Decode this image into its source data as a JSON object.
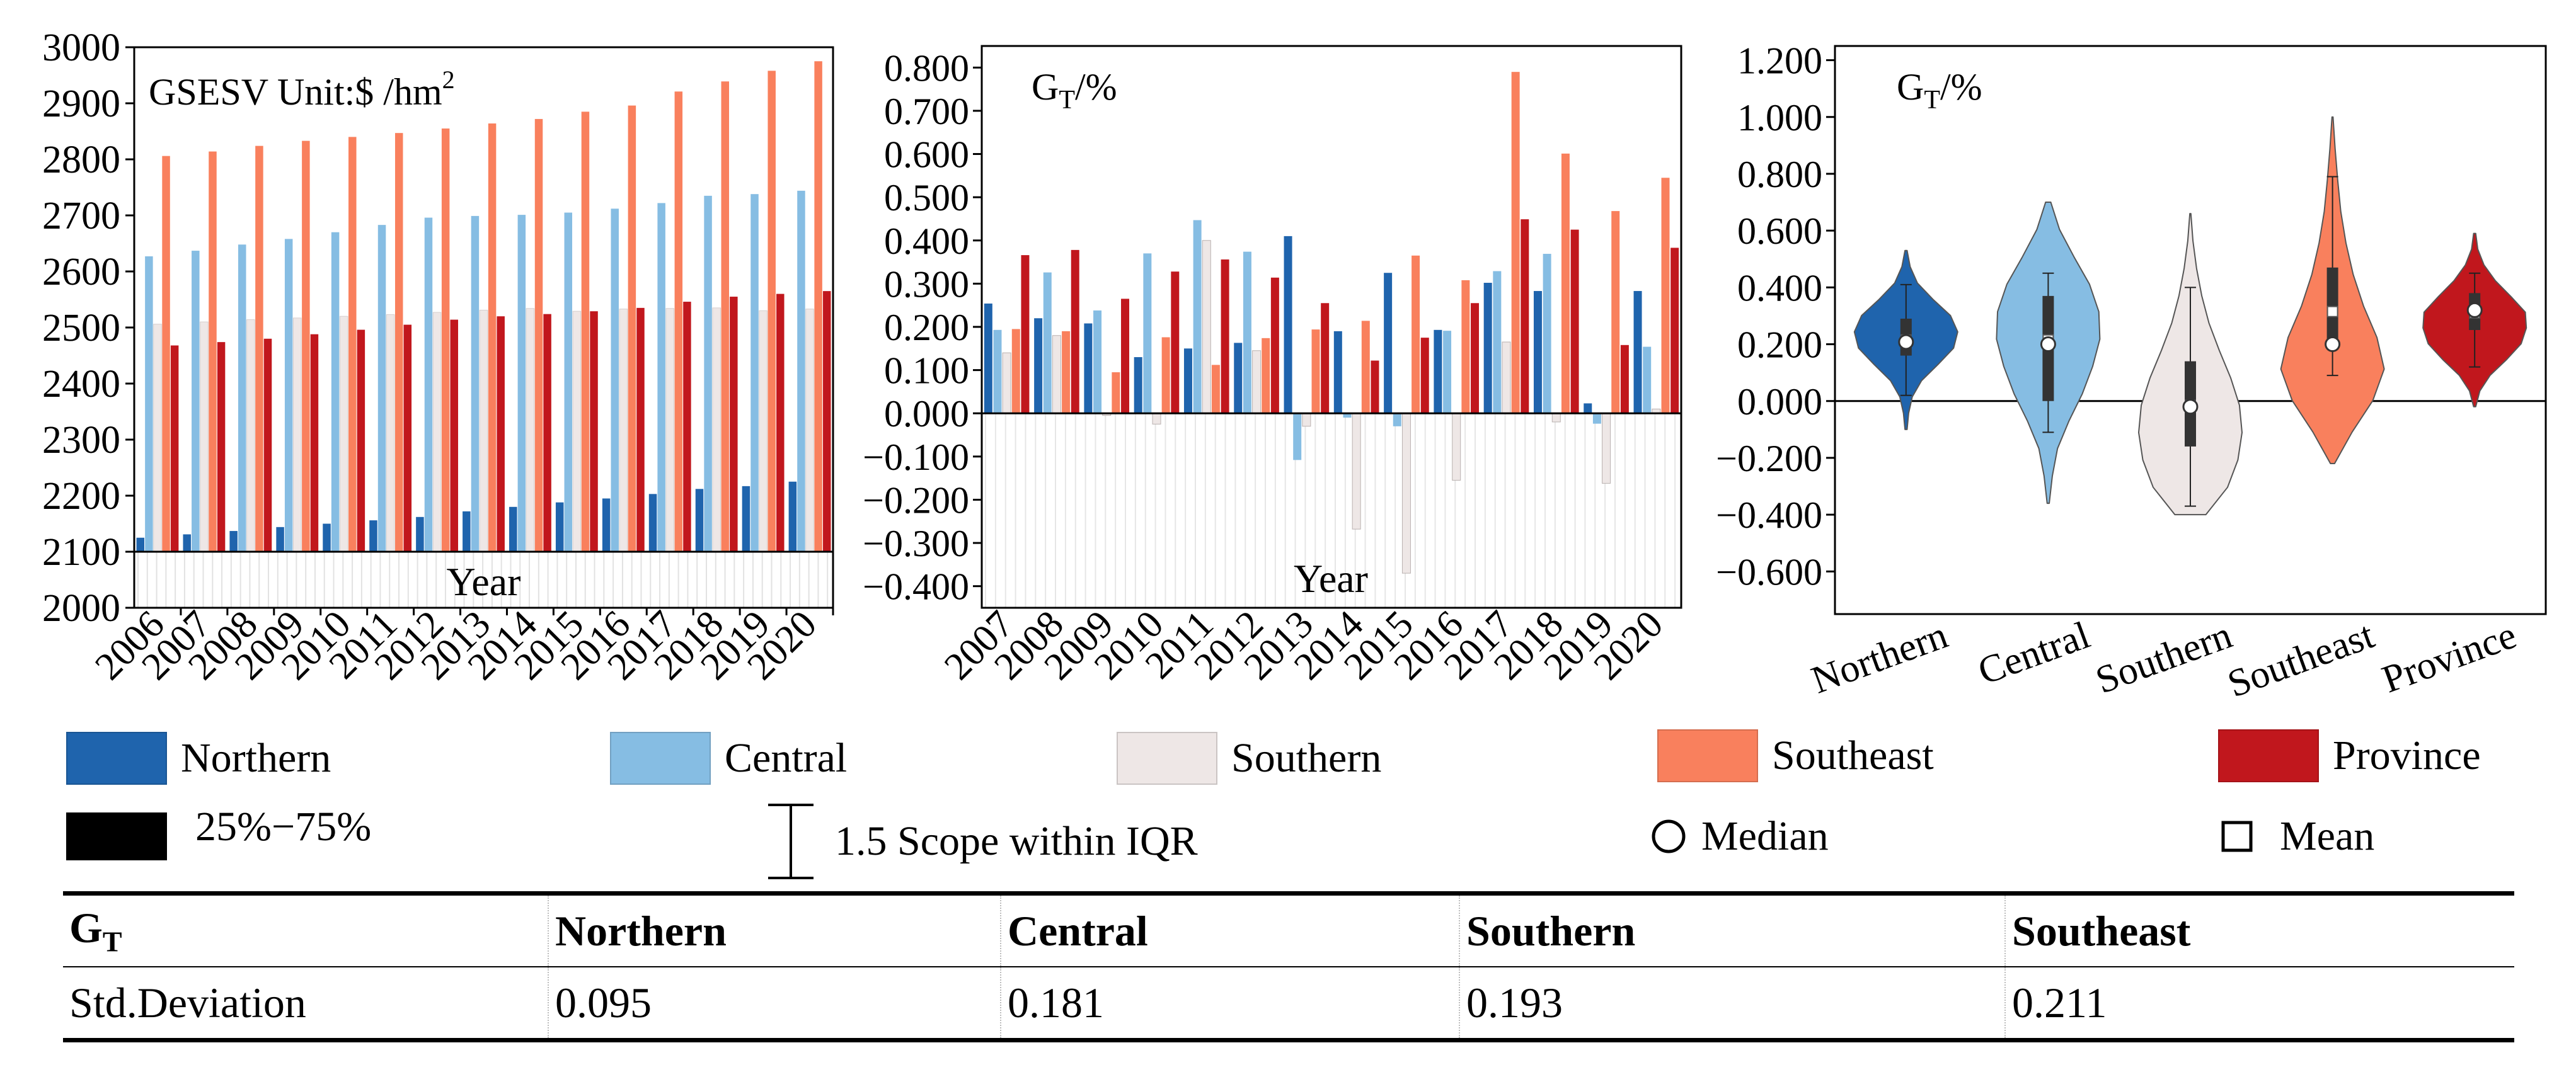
{
  "colors": {
    "Northern": "#1f64ad",
    "Central": "#86bde3",
    "Southern": "#eee7e6",
    "Southeast": "#f9805d",
    "Province": "#c1171d",
    "iqr_box": "#000000"
  },
  "chart_data": [
    {
      "id": "gsesv",
      "type": "bar",
      "title": "GSESV  Unit:$ /hm",
      "title_superscript": "2",
      "xlabel": "Year",
      "ylabel": "",
      "ylim": [
        2000,
        3000
      ],
      "yticks": [
        2000,
        2100,
        2200,
        2300,
        2400,
        2500,
        2600,
        2700,
        2800,
        2900,
        3000
      ],
      "categories": [
        "2006",
        "2007",
        "2008",
        "2009",
        "2010",
        "2011",
        "2012",
        "2013",
        "2014",
        "2015",
        "2016",
        "2017",
        "2018",
        "2019",
        "2020"
      ],
      "series": [
        {
          "name": "Northern",
          "values": [
            2125,
            2131,
            2137,
            2144,
            2150,
            2156,
            2162,
            2172,
            2180,
            2188,
            2195,
            2203,
            2212,
            2217,
            2225
          ]
        },
        {
          "name": "Central",
          "values": [
            2627,
            2637,
            2648,
            2658,
            2670,
            2683,
            2696,
            2699,
            2701,
            2705,
            2712,
            2722,
            2735,
            2738,
            2744
          ]
        },
        {
          "name": "Southern",
          "values": [
            2506,
            2510,
            2514,
            2517,
            2520,
            2523,
            2527,
            2531,
            2534,
            2529,
            2533,
            2534,
            2535,
            2530,
            2533
          ]
        },
        {
          "name": "Southeast",
          "values": [
            2806,
            2814,
            2824,
            2833,
            2840,
            2847,
            2855,
            2864,
            2872,
            2885,
            2896,
            2921,
            2939,
            2958,
            2975
          ]
        },
        {
          "name": "Province",
          "values": [
            2468,
            2474,
            2480,
            2488,
            2496,
            2505,
            2514,
            2520,
            2524,
            2529,
            2535,
            2546,
            2555,
            2560,
            2565
          ]
        }
      ]
    },
    {
      "id": "gt-bars",
      "type": "bar",
      "title": "G",
      "title_subscript": "T",
      "title_suffix": "/%",
      "xlabel": "Year",
      "ylabel": "",
      "ylim": [
        -0.45,
        0.85
      ],
      "yticks": [
        -0.4,
        -0.3,
        -0.2,
        -0.1,
        0,
        0.1,
        0.2,
        0.3,
        0.4,
        0.5,
        0.6,
        0.7,
        0.8
      ],
      "categories": [
        "2007",
        "2008",
        "2009",
        "2010",
        "2011",
        "2012",
        "2013",
        "2014",
        "2015",
        "2016",
        "2017",
        "2018",
        "2019",
        "2020"
      ],
      "series": [
        {
          "name": "Northern",
          "values": [
            0.254,
            0.22,
            0.208,
            0.13,
            0.15,
            0.163,
            0.41,
            0.19,
            0.325,
            0.193,
            0.302,
            0.283,
            0.023,
            0.283
          ]
        },
        {
          "name": "Central",
          "values": [
            0.193,
            0.326,
            0.238,
            0.37,
            0.447,
            0.374,
            -0.108,
            -0.01,
            -0.03,
            0.191,
            0.329,
            0.369,
            -0.024,
            0.154
          ]
        },
        {
          "name": "Southern",
          "values": [
            0.14,
            0.18,
            -0.005,
            -0.025,
            0.4,
            0.145,
            -0.03,
            -0.268,
            -0.37,
            -0.155,
            0.165,
            -0.02,
            -0.162,
            0.01
          ]
        },
        {
          "name": "Southeast",
          "values": [
            0.195,
            0.19,
            0.095,
            0.176,
            0.112,
            0.174,
            0.194,
            0.214,
            0.365,
            0.308,
            0.79,
            0.601,
            0.468,
            0.545
          ]
        },
        {
          "name": "Province",
          "values": [
            0.366,
            0.378,
            0.265,
            0.328,
            0.356,
            0.314,
            0.255,
            0.122,
            0.175,
            0.255,
            0.449,
            0.425,
            0.158,
            0.383
          ]
        }
      ]
    },
    {
      "id": "gt-violin",
      "type": "violin",
      "title": "G",
      "title_subscript": "T",
      "title_suffix": "/%",
      "ylim": [
        -0.75,
        1.25
      ],
      "yticks": [
        -0.6,
        -0.4,
        -0.2,
        0,
        0.2,
        0.4,
        0.6,
        0.8,
        1.0,
        1.2
      ],
      "categories": [
        "Northern",
        "Central",
        "Southern",
        "Southeast",
        "Province"
      ],
      "series": [
        {
          "name": "Northern",
          "min": 0.02,
          "max": 0.41,
          "q1": 0.16,
          "q3": 0.29,
          "median": 0.208,
          "mean": 0.215,
          "kde_low": -0.1,
          "kde_high": 0.53,
          "profile": [
            0.02,
            0.05,
            0.12,
            0.3,
            0.62,
            0.92,
            1.0,
            0.86,
            0.52,
            0.22,
            0.08,
            0.02
          ]
        },
        {
          "name": "Central",
          "min": -0.11,
          "max": 0.45,
          "q1": 0.0,
          "q3": 0.37,
          "median": 0.2,
          "mean": 0.215,
          "kde_low": -0.36,
          "kde_high": 0.7,
          "profile": [
            0.02,
            0.08,
            0.18,
            0.4,
            0.66,
            0.86,
            1.0,
            0.98,
            0.8,
            0.5,
            0.22,
            0.05
          ]
        },
        {
          "name": "Southern",
          "min": -0.37,
          "max": 0.4,
          "q1": -0.16,
          "q3": 0.14,
          "median": -0.02,
          "mean": -0.015,
          "kde_low": -0.4,
          "kde_high": 0.66,
          "profile": [
            0.3,
            0.72,
            0.92,
            1.0,
            0.95,
            0.78,
            0.56,
            0.36,
            0.22,
            0.12,
            0.05,
            0.01
          ]
        },
        {
          "name": "Southeast",
          "min": 0.09,
          "max": 0.79,
          "q1": 0.18,
          "q3": 0.47,
          "median": 0.2,
          "mean": 0.315,
          "kde_low": -0.22,
          "kde_high": 1.0,
          "profile": [
            0.04,
            0.38,
            0.78,
            1.0,
            0.86,
            0.6,
            0.4,
            0.26,
            0.16,
            0.1,
            0.05,
            0.01
          ]
        },
        {
          "name": "Province",
          "min": 0.12,
          "max": 0.45,
          "q1": 0.25,
          "q3": 0.38,
          "median": 0.32,
          "mean": 0.31,
          "kde_low": -0.02,
          "kde_high": 0.59,
          "profile": [
            0.02,
            0.1,
            0.3,
            0.62,
            0.9,
            1.0,
            0.98,
            0.7,
            0.4,
            0.18,
            0.06,
            0.02
          ]
        }
      ]
    }
  ],
  "legend": {
    "items": [
      {
        "label": "Northern"
      },
      {
        "label": "Central"
      },
      {
        "label": "Southern"
      },
      {
        "label": "Southeast"
      },
      {
        "label": "Province"
      }
    ],
    "iqr_label": "25%−75%",
    "whisker_label": "1.5 Scope within IQR",
    "median_label": "Median",
    "mean_label": "Mean"
  },
  "table": {
    "headers": [
      "G",
      "Northern",
      "Central",
      "Southern",
      "Southeast"
    ],
    "header_subscript": "T",
    "row_label": "Std.Deviation",
    "values": [
      "0.095",
      "0.181",
      "0.193",
      "0.211"
    ]
  }
}
